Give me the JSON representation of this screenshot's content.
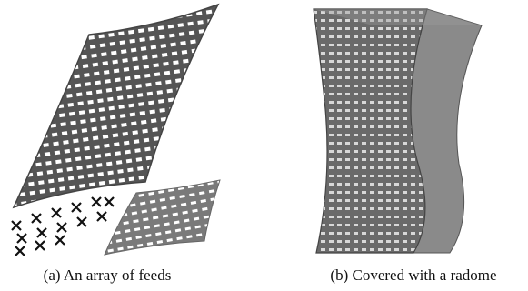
{
  "figures": [
    {
      "caption": "(a) An array of feeds"
    },
    {
      "caption": "(b) Covered with a radome"
    }
  ]
}
